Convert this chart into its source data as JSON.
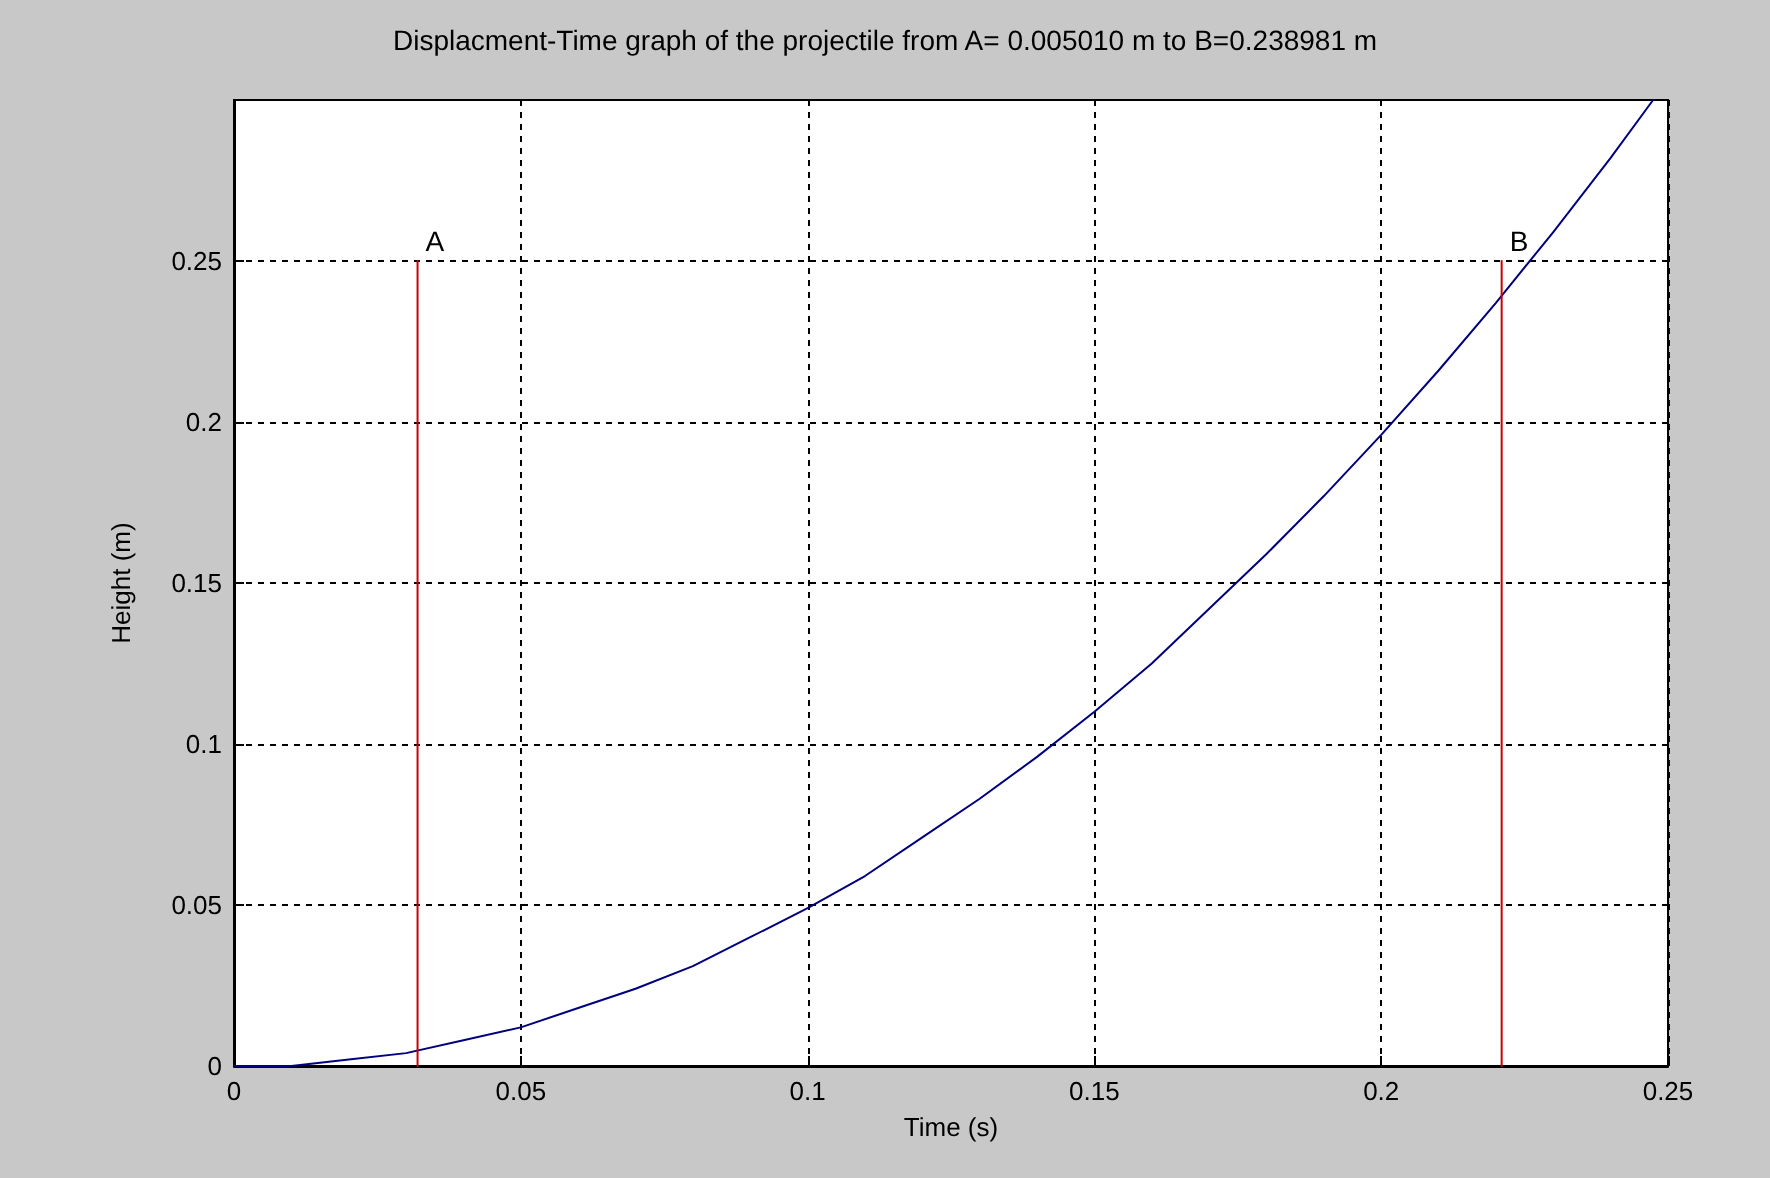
{
  "chart_data": {
    "type": "line",
    "title": "Displacment-Time graph of the projectile from A= 0.005010 m to B=0.238981 m",
    "xlabel": "Time (s)",
    "ylabel": "Height (m)",
    "xlim": [
      0,
      0.25
    ],
    "xticks": [
      0,
      0.05,
      0.1,
      0.15,
      0.2,
      0.25
    ],
    "ylim": [
      0,
      0.3
    ],
    "yticks": [
      0,
      0.05,
      0.1,
      0.15,
      0.2,
      0.25
    ],
    "grid": true,
    "marker": "none",
    "line_style": "solid",
    "series": [
      {
        "color": "#00007f",
        "x": [
          0,
          0.01,
          0.02,
          0.03,
          0.04,
          0.05,
          0.06,
          0.07,
          0.08,
          0.09,
          0.1,
          0.11,
          0.12,
          0.13,
          0.14,
          0.15,
          0.16,
          0.17,
          0.18,
          0.19,
          0.2,
          0.21,
          0.22,
          0.23,
          0.24,
          0.2474
        ],
        "values": [
          0,
          0,
          0.002,
          0.004,
          0.008,
          0.012,
          0.018,
          0.024,
          0.031,
          0.04,
          0.049,
          0.059,
          0.071,
          0.083,
          0.096,
          0.11,
          0.125,
          0.142,
          0.159,
          0.177,
          0.196,
          0.216,
          0.237,
          0.259,
          0.282,
          0.3
        ]
      },
      {
        "color": "#cc0000",
        "x": [
          0.032,
          0.032
        ],
        "values": [
          0,
          0.25
        ]
      },
      {
        "color": "#cc0000",
        "x": [
          0.221,
          0.221
        ],
        "values": [
          0,
          0.25
        ]
      }
    ],
    "annotations": [
      {
        "text": "A",
        "x": 0.032,
        "y": 0.25
      },
      {
        "text": "B",
        "x": 0.221,
        "y": 0.25
      }
    ]
  }
}
